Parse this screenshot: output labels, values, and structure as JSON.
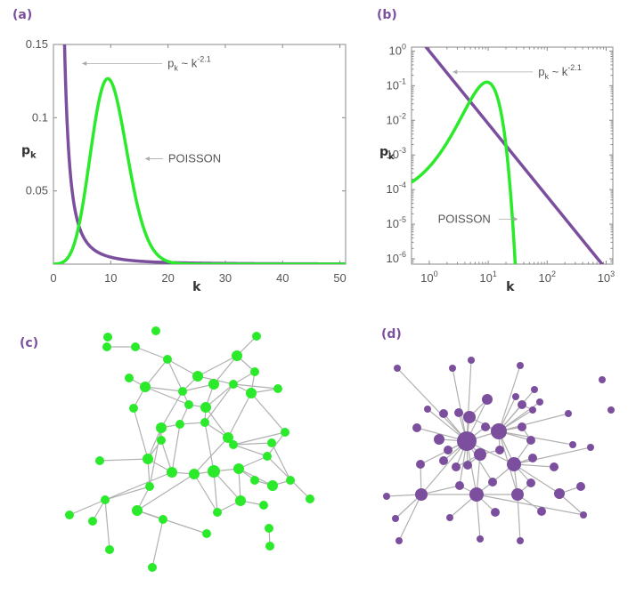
{
  "colors": {
    "purple": "#7b4f9e",
    "green": "#2bea2b",
    "edge": "#b0b0b0",
    "label": "#7b4f9e",
    "axis": "#888888"
  },
  "panels": {
    "a": {
      "label": "(a)"
    },
    "b": {
      "label": "(b)"
    },
    "c": {
      "label": "(c)"
    },
    "d": {
      "label": "(d)"
    }
  },
  "chart_data": [
    {
      "type": "line",
      "panel": "a",
      "xlabel": "k",
      "ylabel": "p",
      "ylabel_sub": "k",
      "xlim": [
        0,
        51
      ],
      "ylim": [
        0,
        0.15
      ],
      "xscale": "linear",
      "yscale": "linear",
      "xticks": [
        0,
        10,
        20,
        30,
        40,
        50
      ],
      "xtick_labels": [
        "0",
        "10",
        "20",
        "30",
        "40",
        "50"
      ],
      "yticks": [
        0.05,
        0.1,
        0.15
      ],
      "ytick_labels": [
        "0.05",
        "0.1",
        "0.15"
      ],
      "series": [
        {
          "color": "purple",
          "formula": "power_law",
          "gamma": 2.1,
          "norm": 0.6,
          "x_range": [
            1,
            51
          ]
        },
        {
          "color": "green",
          "formula": "poisson",
          "mean": 10,
          "x_range": [
            0,
            51
          ]
        }
      ],
      "annotations": [
        {
          "text_main": "p",
          "text_sub": "k",
          "text_rest": " ~ k",
          "text_sup": "-2.1",
          "arrow": "left",
          "at": [
            5,
            0.137
          ]
        },
        {
          "text": "POISSON",
          "arrow": "left",
          "at": [
            16,
            0.072
          ]
        }
      ]
    },
    {
      "type": "line",
      "panel": "b",
      "xlabel": "k",
      "ylabel": "p",
      "ylabel_sub": "k",
      "xlim": [
        0.5,
        1300
      ],
      "ylim": [
        7e-07,
        1.3
      ],
      "xscale": "log",
      "yscale": "log",
      "xticks": [
        1,
        10,
        100,
        1000
      ],
      "xtick_base": [
        "10",
        "10",
        "10",
        "10"
      ],
      "xtick_exp": [
        "0",
        "1",
        "2",
        "3"
      ],
      "yticks": [
        1,
        0.1,
        0.01,
        0.001,
        0.0001,
        1e-05,
        1e-06
      ],
      "ytick_base": [
        "10",
        "10",
        "10",
        "10",
        "10",
        "10",
        "10"
      ],
      "ytick_exp": [
        "0",
        "-1",
        "-2",
        "-3",
        "-4",
        "-5",
        "-6"
      ],
      "series": [
        {
          "color": "purple",
          "formula": "power_law",
          "gamma": 2.1,
          "norm": 1.0,
          "x_range": [
            0.5,
            1000
          ]
        },
        {
          "color": "green",
          "formula": "poisson",
          "mean": 10,
          "x_range": [
            0.5,
            30
          ]
        }
      ],
      "annotations": [
        {
          "text_main": "p",
          "text_sub": "k",
          "text_rest": " ~ k",
          "text_sup": "-2.1",
          "arrow": "left",
          "at": [
            2.5,
            0.25
          ]
        },
        {
          "text": "POISSON",
          "arrow": "right",
          "at": [
            1.4,
            1.4e-05
          ]
        }
      ]
    }
  ],
  "networks": [
    {
      "panel": "c",
      "color": "green",
      "nodes": [
        [
          121,
          379,
          5
        ],
        [
          175,
          372,
          5
        ],
        [
          120,
          390,
          5
        ],
        [
          152,
          390,
          5
        ],
        [
          188,
          404,
          5
        ],
        [
          266,
          400,
          6
        ],
        [
          288,
          378,
          5
        ],
        [
          222,
          423,
          6
        ],
        [
          145,
          425,
          5
        ],
        [
          163,
          435,
          6
        ],
        [
          205,
          440,
          5
        ],
        [
          240,
          432,
          6
        ],
        [
          262,
          432,
          5
        ],
        [
          212,
          455,
          5
        ],
        [
          231,
          458,
          6
        ],
        [
          286,
          418,
          5
        ],
        [
          312,
          437,
          5
        ],
        [
          282,
          442,
          6
        ],
        [
          150,
          459,
          5
        ],
        [
          181,
          481,
          6
        ],
        [
          202,
          477,
          5
        ],
        [
          181,
          495,
          5
        ],
        [
          230,
          475,
          5
        ],
        [
          256,
          492,
          6
        ],
        [
          262,
          500,
          5
        ],
        [
          166,
          516,
          6
        ],
        [
          112,
          518,
          5
        ],
        [
          193,
          531,
          6
        ],
        [
          218,
          533,
          6
        ],
        [
          240,
          530,
          7
        ],
        [
          268,
          527,
          6
        ],
        [
          300,
          513,
          5
        ],
        [
          320,
          486,
          5
        ],
        [
          305,
          498,
          5
        ],
        [
          286,
          540,
          5
        ],
        [
          306,
          546,
          6
        ],
        [
          326,
          540,
          5
        ],
        [
          168,
          547,
          5
        ],
        [
          118,
          562,
          5
        ],
        [
          154,
          574,
          6
        ],
        [
          244,
          576,
          5
        ],
        [
          270,
          563,
          6
        ],
        [
          296,
          568,
          5
        ],
        [
          348,
          561,
          5
        ],
        [
          78,
          579,
          5
        ],
        [
          104,
          586,
          5
        ],
        [
          183,
          584,
          5
        ],
        [
          232,
          600,
          5
        ],
        [
          302,
          594,
          5
        ],
        [
          303,
          614,
          5
        ],
        [
          123,
          618,
          5
        ],
        [
          171,
          638,
          5
        ]
      ],
      "edges": [
        [
          3,
          4
        ],
        [
          4,
          7
        ],
        [
          7,
          5
        ],
        [
          5,
          6
        ],
        [
          5,
          15
        ],
        [
          7,
          12
        ],
        [
          7,
          10
        ],
        [
          10,
          11
        ],
        [
          11,
          5
        ],
        [
          12,
          17
        ],
        [
          17,
          16
        ],
        [
          15,
          17
        ],
        [
          9,
          10
        ],
        [
          8,
          9
        ],
        [
          9,
          18
        ],
        [
          9,
          13
        ],
        [
          10,
          13
        ],
        [
          13,
          14
        ],
        [
          14,
          12
        ],
        [
          10,
          19
        ],
        [
          13,
          20
        ],
        [
          19,
          20
        ],
        [
          19,
          21
        ],
        [
          20,
          22
        ],
        [
          22,
          14
        ],
        [
          22,
          23
        ],
        [
          23,
          24
        ],
        [
          23,
          17
        ],
        [
          24,
          31
        ],
        [
          24,
          33
        ],
        [
          31,
          32
        ],
        [
          32,
          17
        ],
        [
          21,
          25
        ],
        [
          25,
          26
        ],
        [
          25,
          27
        ],
        [
          25,
          37
        ],
        [
          27,
          28
        ],
        [
          28,
          29
        ],
        [
          29,
          30
        ],
        [
          29,
          22
        ],
        [
          30,
          31
        ],
        [
          30,
          34
        ],
        [
          30,
          35
        ],
        [
          34,
          35
        ],
        [
          35,
          36
        ],
        [
          33,
          36
        ],
        [
          31,
          43
        ],
        [
          27,
          38
        ],
        [
          37,
          38
        ],
        [
          37,
          39
        ],
        [
          38,
          44
        ],
        [
          38,
          45
        ],
        [
          39,
          46
        ],
        [
          29,
          40
        ],
        [
          28,
          40
        ],
        [
          40,
          41
        ],
        [
          41,
          42
        ],
        [
          41,
          30
        ],
        [
          39,
          47
        ],
        [
          46,
          51
        ],
        [
          38,
          50
        ],
        [
          28,
          39
        ],
        [
          20,
          27
        ],
        [
          23,
          28
        ],
        [
          19,
          25
        ],
        [
          14,
          23
        ],
        [
          11,
          14
        ],
        [
          12,
          16
        ],
        [
          4,
          9
        ],
        [
          2,
          3
        ],
        [
          48,
          49
        ],
        [
          12,
          22
        ],
        [
          21,
          27
        ],
        [
          32,
          24
        ],
        [
          18,
          25
        ],
        [
          4,
          10
        ],
        [
          29,
          41
        ],
        [
          15,
          12
        ],
        [
          19,
          37
        ],
        [
          46,
          39
        ]
      ]
    },
    {
      "panel": "d",
      "color": "purple",
      "nodes": [
        [
          446,
          414,
          4
        ],
        [
          508,
          414,
          4
        ],
        [
          529,
          405,
          4
        ],
        [
          584,
          411,
          4
        ],
        [
          600,
          438,
          4
        ],
        [
          676,
          427,
          4
        ],
        [
          547,
          449,
          6
        ],
        [
          579,
          446,
          4
        ],
        [
          480,
          460,
          4
        ],
        [
          498,
          465,
          5
        ],
        [
          515,
          464,
          5
        ],
        [
          527,
          469,
          7
        ],
        [
          586,
          455,
          5
        ],
        [
          606,
          452,
          4
        ],
        [
          598,
          461,
          4
        ],
        [
          468,
          481,
          5
        ],
        [
          493,
          494,
          6
        ],
        [
          524,
          496,
          11
        ],
        [
          545,
          480,
          5
        ],
        [
          560,
          485,
          9
        ],
        [
          586,
          480,
          5
        ],
        [
          686,
          461,
          4
        ],
        [
          638,
          465,
          4
        ],
        [
          643,
          500,
          4
        ],
        [
          663,
          503,
          4
        ],
        [
          503,
          506,
          5
        ],
        [
          539,
          511,
          7
        ],
        [
          561,
          506,
          5
        ],
        [
          596,
          495,
          5
        ],
        [
          472,
          522,
          5
        ],
        [
          498,
          518,
          5
        ],
        [
          512,
          525,
          5
        ],
        [
          525,
          523,
          5
        ],
        [
          577,
          522,
          8
        ],
        [
          598,
          515,
          5
        ],
        [
          622,
          525,
          5
        ],
        [
          516,
          546,
          5
        ],
        [
          553,
          542,
          5
        ],
        [
          596,
          543,
          5
        ],
        [
          652,
          547,
          5
        ],
        [
          434,
          558,
          4
        ],
        [
          473,
          556,
          7
        ],
        [
          535,
          556,
          8
        ],
        [
          581,
          556,
          7
        ],
        [
          628,
          555,
          6
        ],
        [
          444,
          583,
          4
        ],
        [
          505,
          582,
          4
        ],
        [
          556,
          576,
          5
        ],
        [
          608,
          575,
          5
        ],
        [
          655,
          579,
          4
        ],
        [
          448,
          608,
          4
        ],
        [
          539,
          606,
          4
        ],
        [
          584,
          608,
          4
        ]
      ],
      "edges": [
        [
          17,
          1
        ],
        [
          17,
          2
        ],
        [
          17,
          6
        ],
        [
          17,
          8
        ],
        [
          17,
          9
        ],
        [
          17,
          10
        ],
        [
          17,
          11
        ],
        [
          17,
          15
        ],
        [
          17,
          16
        ],
        [
          17,
          18
        ],
        [
          17,
          19
        ],
        [
          17,
          25
        ],
        [
          17,
          26
        ],
        [
          17,
          29
        ],
        [
          17,
          30
        ],
        [
          17,
          31
        ],
        [
          17,
          32
        ],
        [
          17,
          36
        ],
        [
          17,
          37
        ],
        [
          17,
          41
        ],
        [
          17,
          42
        ],
        [
          19,
          3
        ],
        [
          19,
          7
        ],
        [
          19,
          12
        ],
        [
          19,
          13
        ],
        [
          19,
          14
        ],
        [
          19,
          20
        ],
        [
          19,
          27
        ],
        [
          19,
          28
        ],
        [
          19,
          33
        ],
        [
          19,
          22
        ],
        [
          19,
          23
        ],
        [
          19,
          18
        ],
        [
          33,
          34
        ],
        [
          33,
          35
        ],
        [
          33,
          38
        ],
        [
          33,
          44
        ],
        [
          33,
          43
        ],
        [
          33,
          28
        ],
        [
          42,
          43
        ],
        [
          42,
          36
        ],
        [
          42,
          46
        ],
        [
          42,
          47
        ],
        [
          42,
          51
        ],
        [
          42,
          41
        ],
        [
          42,
          37
        ],
        [
          41,
          40
        ],
        [
          41,
          45
        ],
        [
          41,
          50
        ],
        [
          41,
          36
        ],
        [
          43,
          48
        ],
        [
          43,
          52
        ],
        [
          43,
          38
        ],
        [
          44,
          39
        ],
        [
          44,
          49
        ],
        [
          26,
          27
        ],
        [
          26,
          31
        ],
        [
          26,
          32
        ],
        [
          11,
          6
        ],
        [
          11,
          10
        ],
        [
          20,
          28
        ],
        [
          12,
          14
        ],
        [
          29,
          41
        ],
        [
          33,
          37
        ],
        [
          0,
          17
        ],
        [
          4,
          19
        ],
        [
          26,
          42
        ],
        [
          19,
          43
        ],
        [
          17,
          33
        ],
        [
          11,
          19
        ],
        [
          42,
          49
        ],
        [
          33,
          24
        ]
      ]
    }
  ]
}
